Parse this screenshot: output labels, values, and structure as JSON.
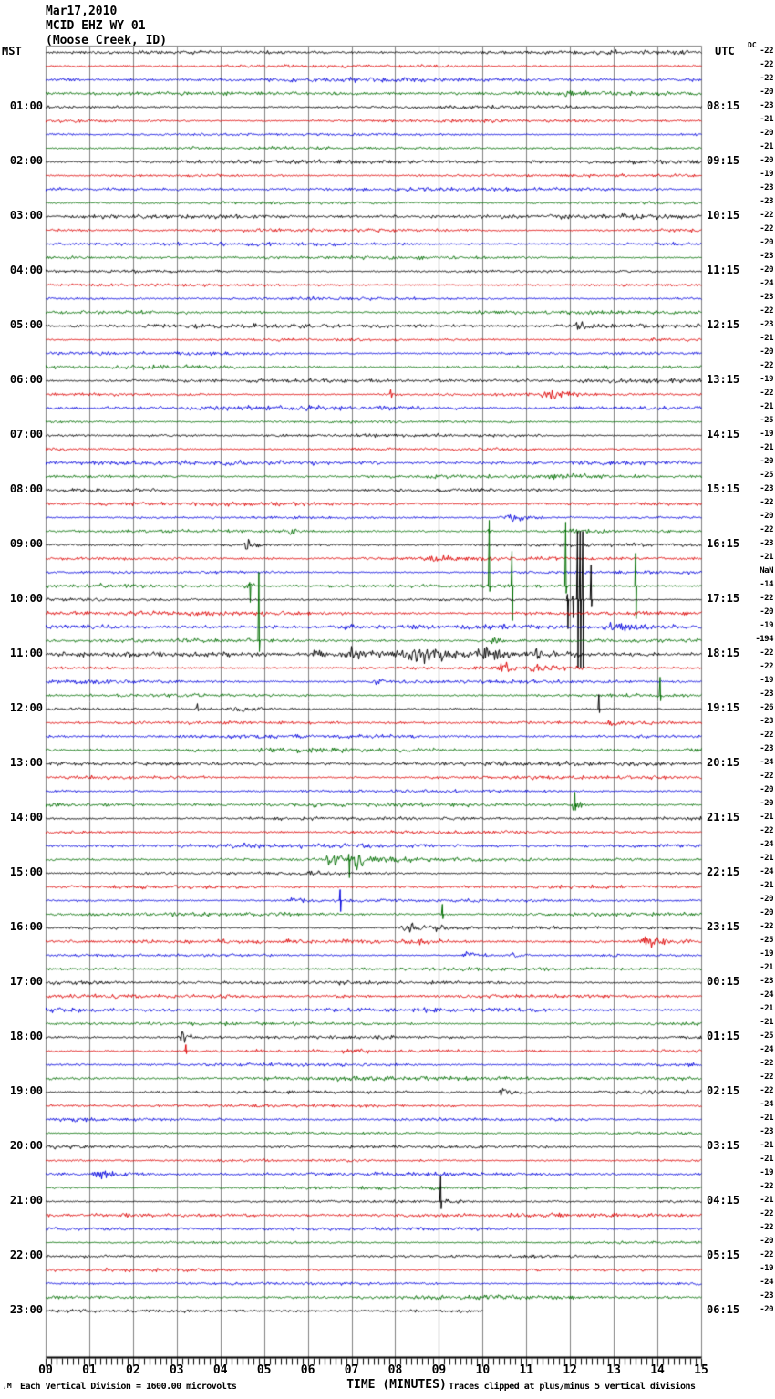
{
  "title": {
    "date": "Mar17,2010",
    "station": "MCID EHZ WY 01",
    "location": "(Moose Creek, ID)"
  },
  "headers": {
    "left": "MST",
    "right": "UTC",
    "dc": "DC"
  },
  "footer": {
    "scale_note": "Each Vertical Division = 1600.00 microvolts",
    "axis_label": "TIME (MINUTES)",
    "clip_note": "Traces clipped at plus/minus 5 vertical divisions",
    "corner_mark": ",M"
  },
  "colors": {
    "trace_cycle": [
      "#000000",
      "#dd0000",
      "#0000dd",
      "#006e00"
    ],
    "grid": "#808080",
    "axis": "#000000",
    "background": "#ffffff"
  },
  "chart_data": {
    "type": "line",
    "subtype": "helicorder-seismogram",
    "title": "MCID EHZ WY 01 (Moose Creek, ID) Mar17,2010",
    "xlabel": "TIME (MINUTES)",
    "x_range": [
      0,
      15
    ],
    "x_ticks": [
      "00",
      "01",
      "02",
      "03",
      "04",
      "05",
      "06",
      "07",
      "08",
      "09",
      "10",
      "11",
      "12",
      "13",
      "14",
      "15"
    ],
    "minutes_per_row": 15,
    "division_microvolts": 1600.0,
    "clip_divisions": 5,
    "left_timezone": "MST",
    "right_timezone": "UTC",
    "rows": [
      {
        "dc": "-22"
      },
      {
        "dc": "-22"
      },
      {
        "dc": "-22"
      },
      {
        "dc": "-20",
        "bursts": [
          [
            11.85,
            0.25,
            5
          ]
        ]
      },
      {
        "mst": "01:00",
        "utc": "08:15",
        "dc": "-23"
      },
      {
        "dc": "-21"
      },
      {
        "dc": "-20"
      },
      {
        "dc": "-21"
      },
      {
        "mst": "02:00",
        "utc": "09:15",
        "dc": "-20"
      },
      {
        "dc": "-19"
      },
      {
        "dc": "-23"
      },
      {
        "dc": "-23"
      },
      {
        "mst": "03:00",
        "utc": "10:15",
        "dc": "-22"
      },
      {
        "dc": "-22"
      },
      {
        "dc": "-20"
      },
      {
        "dc": "-23"
      },
      {
        "mst": "04:00",
        "utc": "11:15",
        "dc": "-20"
      },
      {
        "dc": "-24"
      },
      {
        "dc": "-23"
      },
      {
        "dc": "-22"
      },
      {
        "mst": "05:00",
        "utc": "12:15",
        "dc": "-23",
        "bursts": [
          [
            12.1,
            0.3,
            8
          ]
        ]
      },
      {
        "dc": "-21"
      },
      {
        "dc": "-20"
      },
      {
        "dc": "-22"
      },
      {
        "mst": "06:00",
        "utc": "13:15",
        "dc": "-19"
      },
      {
        "dc": "-22",
        "bursts": [
          [
            7.85,
            0.15,
            5
          ],
          [
            11.3,
            0.75,
            7
          ]
        ]
      },
      {
        "dc": "-21"
      },
      {
        "dc": "-25"
      },
      {
        "mst": "07:00",
        "utc": "14:15",
        "dc": "-19"
      },
      {
        "dc": "-21"
      },
      {
        "dc": "-20"
      },
      {
        "dc": "-25",
        "bursts": [
          [
            11.3,
            1.3,
            2.5
          ]
        ]
      },
      {
        "mst": "08:00",
        "utc": "15:15",
        "dc": "-23"
      },
      {
        "dc": "-22"
      },
      {
        "dc": "-20",
        "bursts": [
          [
            10.35,
            1.1,
            5
          ]
        ]
      },
      {
        "dc": "-22",
        "bursts": [
          [
            5.55,
            0.3,
            5
          ],
          [
            10.05,
            0.3,
            4
          ],
          [
            11.7,
            1.0,
            2.5
          ]
        ]
      },
      {
        "mst": "09:00",
        "utc": "16:15",
        "dc": "-23",
        "bursts": [
          [
            4.5,
            0.35,
            9
          ]
        ]
      },
      {
        "dc": "-21",
        "bursts": [
          [
            8.6,
            1.1,
            3
          ]
        ]
      },
      {
        "dc": "NaN"
      },
      {
        "dc": "-14",
        "bursts": [
          [
            4.5,
            0.3,
            4
          ]
        ],
        "spikes": [
          [
            4.66,
            4,
            18
          ],
          [
            10.14,
            72,
            6
          ],
          [
            10.66,
            38,
            38
          ],
          [
            11.89,
            70,
            8
          ],
          [
            13.49,
            36,
            36
          ]
        ]
      },
      {
        "mst": "10:00",
        "utc": "17:15",
        "dc": "-22",
        "spikes": [
          [
            11.93,
            6,
            32
          ],
          [
            12.05,
            4,
            20
          ],
          [
            12.16,
            75,
            75
          ],
          [
            12.22,
            75,
            75
          ],
          [
            12.28,
            75,
            75
          ],
          [
            12.47,
            38,
            8
          ]
        ]
      },
      {
        "dc": "-20"
      },
      {
        "dc": "-19",
        "bursts": [
          [
            6.7,
            0.3,
            4
          ],
          [
            12.6,
            1.8,
            4.5
          ]
        ]
      },
      {
        "dc": "-194",
        "bursts": [
          [
            10.15,
            0.3,
            5
          ]
        ],
        "spikes": [
          [
            4.87,
            75,
            12
          ]
        ]
      },
      {
        "mst": "11:00",
        "utc": "18:15",
        "dc": "-22",
        "bursts": [
          [
            5.9,
            0.8,
            4
          ],
          [
            6.7,
            1.3,
            7
          ],
          [
            8.0,
            1.8,
            11
          ],
          [
            9.8,
            1.2,
            6
          ],
          [
            11.0,
            1.0,
            3
          ]
        ]
      },
      {
        "dc": "-22",
        "bursts": [
          [
            10.35,
            0.5,
            6
          ],
          [
            10.9,
            1.1,
            3.5
          ]
        ]
      },
      {
        "dc": "-19",
        "bursts": [
          [
            7.45,
            0.4,
            4
          ]
        ]
      },
      {
        "dc": "-23",
        "spikes": [
          [
            14.05,
            20,
            6
          ]
        ]
      },
      {
        "mst": "12:00",
        "utc": "19:15",
        "dc": "-26",
        "bursts": [
          [
            3.4,
            0.25,
            5
          ],
          [
            4.0,
            1.6,
            2.8
          ]
        ],
        "spikes": [
          [
            12.65,
            16,
            4
          ]
        ]
      },
      {
        "dc": "-23",
        "bursts": [
          [
            12.75,
            0.4,
            3.5
          ]
        ]
      },
      {
        "dc": "-22"
      },
      {
        "dc": "-23"
      },
      {
        "mst": "13:00",
        "utc": "20:15",
        "dc": "-24"
      },
      {
        "dc": "-22"
      },
      {
        "dc": "-20"
      },
      {
        "dc": "-20",
        "bursts": [
          [
            12.0,
            0.25,
            8
          ]
        ],
        "spikes": [
          [
            12.1,
            14,
            6
          ]
        ]
      },
      {
        "mst": "14:00",
        "utc": "21:15",
        "dc": "-21"
      },
      {
        "dc": "-22"
      },
      {
        "dc": "-24"
      },
      {
        "dc": "-21",
        "bursts": [
          [
            6.35,
            0.55,
            9
          ],
          [
            6.95,
            0.5,
            8
          ],
          [
            7.55,
            0.7,
            3.5
          ]
        ],
        "spikes": [
          [
            6.93,
            6,
            20
          ]
        ]
      },
      {
        "mst": "15:00",
        "utc": "22:15",
        "dc": "-24",
        "bursts": [
          [
            5.95,
            0.4,
            2.5
          ]
        ]
      },
      {
        "dc": "-21"
      },
      {
        "dc": "-20",
        "bursts": [
          [
            5.5,
            0.6,
            3.5
          ]
        ],
        "spikes": [
          [
            6.73,
            12,
            12
          ]
        ]
      },
      {
        "dc": "-20",
        "spikes": [
          [
            9.07,
            11,
            5
          ]
        ]
      },
      {
        "mst": "16:00",
        "utc": "23:15",
        "dc": "-22",
        "bursts": [
          [
            8.0,
            1.5,
            4.5
          ]
        ]
      },
      {
        "dc": "-25",
        "bursts": [
          [
            8.1,
            1.0,
            3
          ],
          [
            13.55,
            0.8,
            6
          ]
        ]
      },
      {
        "dc": "-19",
        "bursts": [
          [
            9.5,
            0.55,
            5
          ],
          [
            10.6,
            0.3,
            3
          ]
        ]
      },
      {
        "dc": "-21"
      },
      {
        "mst": "17:00",
        "utc": "00:15",
        "dc": "-23"
      },
      {
        "dc": "-24",
        "bursts": [
          [
            6.6,
            0.25,
            3.5
          ]
        ]
      },
      {
        "dc": "-21"
      },
      {
        "dc": "-21"
      },
      {
        "mst": "18:00",
        "utc": "01:15",
        "dc": "-25",
        "bursts": [
          [
            3.0,
            0.45,
            7
          ]
        ]
      },
      {
        "dc": "-24",
        "spikes": [
          [
            3.2,
            7,
            3
          ]
        ]
      },
      {
        "dc": "-22"
      },
      {
        "dc": "-22"
      },
      {
        "mst": "19:00",
        "utc": "02:15",
        "dc": "-22",
        "bursts": [
          [
            10.3,
            0.7,
            4.5
          ]
        ]
      },
      {
        "dc": "-24"
      },
      {
        "dc": "-21"
      },
      {
        "dc": "-23"
      },
      {
        "mst": "20:00",
        "utc": "03:15",
        "dc": "-21"
      },
      {
        "dc": "-21"
      },
      {
        "dc": "-19",
        "bursts": [
          [
            1.05,
            0.9,
            5
          ]
        ]
      },
      {
        "dc": "-22"
      },
      {
        "mst": "21:00",
        "utc": "04:15",
        "dc": "-21",
        "bursts": [
          [
            9.08,
            0.4,
            3
          ]
        ],
        "spikes": [
          [
            9.03,
            28,
            8
          ]
        ]
      },
      {
        "dc": "-22"
      },
      {
        "dc": "-22"
      },
      {
        "dc": "-20"
      },
      {
        "mst": "22:00",
        "utc": "05:15",
        "dc": "-22"
      },
      {
        "dc": "-19"
      },
      {
        "dc": "-24"
      },
      {
        "dc": "-23"
      },
      {
        "mst": "23:00",
        "utc": "06:15",
        "dc": "-20",
        "end": 10.0
      }
    ]
  }
}
